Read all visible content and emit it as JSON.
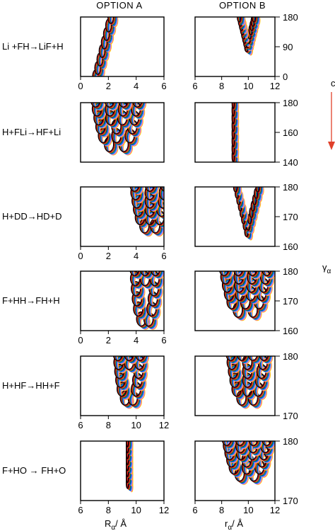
{
  "header": {
    "col_a": "OPTION A",
    "col_b": "OPTION B"
  },
  "side": {
    "cut_label": "c",
    "arrow_color": "#e0402a",
    "gamma_label": "γ",
    "gamma_sub": "α"
  },
  "xlabels": {
    "left_main": "R",
    "left_sub": "α",
    "left_unit": "/ Å",
    "right_main": "r",
    "right_sub": "α",
    "right_unit": "/ Å"
  },
  "ellipse_colors": [
    "#000000",
    "#8b0000",
    "#ff3030",
    "#00a000",
    "#1010ff",
    "#00cccc",
    "#ff40ff",
    "#ffd000"
  ],
  "chart_data": [
    {
      "type": "scatter",
      "row": 0,
      "reaction": "Li +FH→LiF+H",
      "ylim": [
        0,
        180
      ],
      "yticks": [
        "0",
        "90",
        "180"
      ],
      "panels": [
        {
          "option": "A",
          "xlim": [
            0,
            6
          ],
          "xticks": [
            "0",
            "2",
            "4",
            "6"
          ],
          "shape": "diag",
          "x": [
            1.2,
            2.3
          ],
          "y": [
            0,
            180
          ]
        },
        {
          "option": "B",
          "xlim": [
            6,
            12
          ],
          "xticks": [
            "6",
            "8",
            "10",
            "12"
          ],
          "shape": "v",
          "x": [
            10.0,
            10.0
          ],
          "y": [
            90,
            180
          ]
        }
      ]
    },
    {
      "type": "scatter",
      "row": 1,
      "reaction": "H+FLi→HF+Li",
      "ylim": [
        140,
        180
      ],
      "yticks": [
        "140",
        "160",
        "180"
      ],
      "panels": [
        {
          "option": "A",
          "xlim": [
            0,
            6
          ],
          "xticks": [],
          "shape": "u",
          "x": [
            1.2,
            4.2
          ],
          "y": [
            150,
            180
          ]
        },
        {
          "option": "B",
          "xlim": [
            6,
            12
          ],
          "xticks": [],
          "shape": "line",
          "x": [
            9.0,
            9.0
          ],
          "y": [
            144,
            180
          ]
        }
      ]
    },
    {
      "type": "scatter",
      "row": 2,
      "reaction": "H+DD→HD+D",
      "ylim": [
        160,
        180
      ],
      "yticks": [
        "160",
        "170",
        "180"
      ],
      "panels": [
        {
          "option": "A",
          "xlim": [
            0,
            6
          ],
          "xticks": [
            "0",
            "2",
            "4",
            "6"
          ],
          "shape": "u",
          "x": [
            4.0,
            6.2
          ],
          "y": [
            166,
            180
          ]
        },
        {
          "option": "B",
          "xlim": [
            6,
            12
          ],
          "xticks": [],
          "shape": "v",
          "x": [
            10.0,
            10.0
          ],
          "y": [
            165,
            180
          ]
        }
      ]
    },
    {
      "type": "scatter",
      "row": 3,
      "reaction": "F+HH→FH+H",
      "ylim": [
        160,
        180
      ],
      "yticks": [
        "160",
        "170",
        "180"
      ],
      "panels": [
        {
          "option": "A",
          "xlim": [
            0,
            6
          ],
          "xticks": [
            "0",
            "2",
            "4",
            "6"
          ],
          "shape": "u",
          "x": [
            4.0,
            5.5
          ],
          "y": [
            163,
            180
          ]
        },
        {
          "option": "B",
          "xlim": [
            6,
            12
          ],
          "xticks": [],
          "shape": "u",
          "x": [
            8.3,
            11.5
          ],
          "y": [
            166,
            180
          ]
        }
      ]
    },
    {
      "type": "scatter",
      "row": 4,
      "reaction": "H+HF→HH+F",
      "ylim": [
        170,
        180
      ],
      "yticks": [
        "170",
        "180"
      ],
      "panels": [
        {
          "option": "A",
          "xlim": [
            6,
            12
          ],
          "xticks": [
            "6",
            "8",
            "10",
            "12"
          ],
          "shape": "u",
          "x": [
            8.8,
            10.4
          ],
          "y": [
            172.5,
            180
          ]
        },
        {
          "option": "B",
          "xlim": [
            6,
            12
          ],
          "xticks": [],
          "shape": "u",
          "x": [
            8.8,
            11.3
          ],
          "y": [
            172.5,
            180
          ]
        }
      ]
    },
    {
      "type": "scatter",
      "row": 5,
      "reaction": "F+HO → FH+O",
      "ylim": [
        170,
        180
      ],
      "yticks": [
        "170",
        "180"
      ],
      "panels": [
        {
          "option": "A",
          "xlim": [
            6,
            12
          ],
          "xticks": [
            "6",
            "8",
            "10",
            "12"
          ],
          "shape": "line",
          "x": [
            9.5,
            9.5
          ],
          "y": [
            173,
            180
          ]
        },
        {
          "option": "B",
          "xlim": [
            6,
            12
          ],
          "xticks": [
            "6",
            "8",
            "10",
            "12"
          ],
          "shape": "u",
          "x": [
            8.5,
            11.5
          ],
          "y": [
            174,
            180
          ]
        }
      ]
    }
  ]
}
